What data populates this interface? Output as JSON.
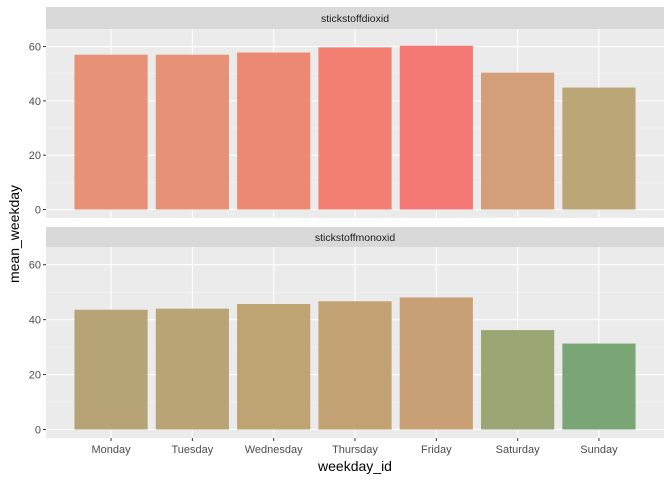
{
  "chart_data": {
    "type": "bar",
    "title": "",
    "xlabel": "weekday_id",
    "ylabel": "mean_weekday",
    "categories": [
      "Monday",
      "Tuesday",
      "Wednesday",
      "Thursday",
      "Friday",
      "Saturday",
      "Sunday"
    ],
    "ylim": [
      0,
      65
    ],
    "yticks": [
      0,
      20,
      40,
      60
    ],
    "grid": true,
    "legend": "none",
    "facets": [
      {
        "label": "stickstoffdioxid",
        "values": [
          57.0,
          57.0,
          57.8,
          59.7,
          60.3,
          50.4,
          44.9
        ],
        "colors": [
          "#E79176",
          "#E79176",
          "#EC8973",
          "#F37F73",
          "#F47874",
          "#D39F78",
          "#BAA677"
        ]
      },
      {
        "label": "stickstoffmonoxid",
        "values": [
          43.6,
          44.0,
          45.7,
          46.7,
          48.1,
          36.2,
          31.3
        ],
        "colors": [
          "#B6A476",
          "#B8A474",
          "#BEA373",
          "#C2A273",
          "#C9A076",
          "#9AA673",
          "#7AA574"
        ]
      }
    ]
  }
}
